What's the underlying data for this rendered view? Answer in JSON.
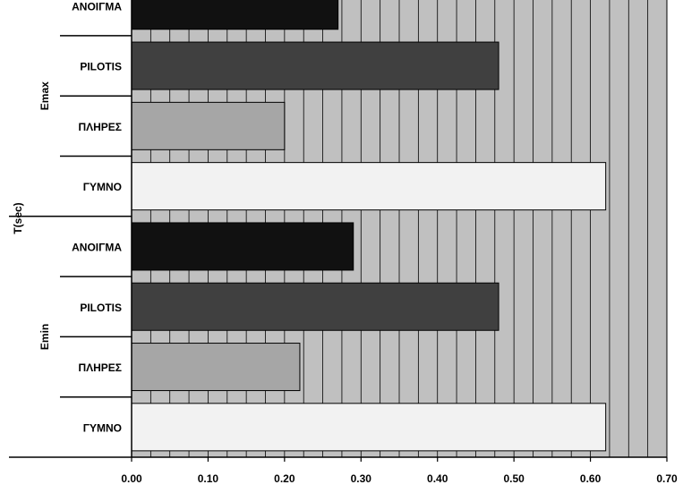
{
  "chart_data": {
    "type": "bar",
    "orientation": "horizontal",
    "title": "",
    "xlabel": "",
    "ylabel": "T(sec)",
    "xlim": [
      0,
      0.7
    ],
    "x_ticks": [
      "0.00",
      "0.10",
      "0.20",
      "0.30",
      "0.40",
      "0.50",
      "0.60",
      "0.70"
    ],
    "grid": "vertical",
    "legend": "none",
    "groups": [
      {
        "name": "Emin",
        "bars": [
          {
            "category": "ΓΥΜΝΟ",
            "value": 0.62,
            "color": "#f2f2f2"
          },
          {
            "category": "ΠΛΗΡΕΣ",
            "value": 0.22,
            "color": "#a6a6a6"
          },
          {
            "category": "PILOTIS",
            "value": 0.48,
            "color": "#404040"
          },
          {
            "category": "ΑΝΟΙΓΜΑ",
            "value": 0.29,
            "color": "#111111"
          }
        ]
      },
      {
        "name": "Emax",
        "bars": [
          {
            "category": "ΓΥΜΝΟ",
            "value": 0.62,
            "color": "#f2f2f2"
          },
          {
            "category": "ΠΛΗΡΕΣ",
            "value": 0.2,
            "color": "#a6a6a6"
          },
          {
            "category": "PILOTIS",
            "value": 0.48,
            "color": "#404040"
          },
          {
            "category": "ΑΝΟΙΓΜΑ",
            "value": 0.27,
            "color": "#111111"
          }
        ]
      }
    ],
    "colors": {
      "plot_background": "#c0c0c0",
      "gridline": "#000000"
    }
  }
}
